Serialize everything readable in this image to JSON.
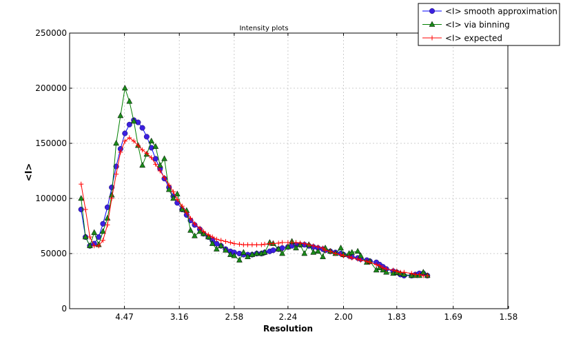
{
  "chart_data": {
    "type": "line",
    "title": "Intensity plots",
    "xlabel": "Resolution",
    "ylabel": "<I>",
    "x_scale": "reciprocal-squared (1/d^2), labelled in resolution",
    "xlim": [
      "infinity",
      1.58
    ],
    "ylim": [
      0,
      250000
    ],
    "grid": true,
    "legend_position": "top-right (outside plot)",
    "x_tick_labels": [
      "4.47",
      "3.16",
      "2.58",
      "2.24",
      "2.00",
      "1.83",
      "1.69",
      "1.58"
    ],
    "y_tick_labels": [
      "0",
      "50000",
      "100000",
      "150000",
      "200000",
      "250000"
    ],
    "x": [
      9.76,
      8.3,
      7.35,
      6.67,
      6.14,
      5.73,
      5.38,
      5.1,
      4.85,
      4.64,
      4.45,
      4.28,
      4.13,
      4.0,
      3.88,
      3.77,
      3.66,
      3.57,
      3.48,
      3.4,
      3.32,
      3.25,
      3.19,
      3.12,
      3.06,
      3.01,
      2.96,
      2.9,
      2.86,
      2.81,
      2.77,
      2.73,
      2.69,
      2.65,
      2.61,
      2.58,
      2.54,
      2.51,
      2.48,
      2.45,
      2.42,
      2.39,
      2.37,
      2.34,
      2.32,
      2.29,
      2.27,
      2.24,
      2.22,
      2.2,
      2.18,
      2.16,
      2.14,
      2.12,
      2.1,
      2.08,
      2.07,
      2.05,
      2.03,
      2.01,
      2.0,
      1.98,
      1.97,
      1.95,
      1.94,
      1.92,
      1.91,
      1.89,
      1.88,
      1.87,
      1.86,
      1.84,
      1.83,
      1.82,
      1.81,
      1.79,
      1.78,
      1.77,
      1.76,
      1.75
    ],
    "series": [
      {
        "name": "<I> smooth approximation",
        "color": "#0000ff",
        "marker": "circle",
        "marker_color": "#3b1fe0",
        "values": [
          90000,
          65000,
          57000,
          59000,
          65000,
          77000,
          92000,
          110000,
          129000,
          145000,
          159000,
          167000,
          171000,
          169000,
          164000,
          156000,
          146000,
          136000,
          127000,
          118000,
          110000,
          102000,
          96000,
          90000,
          85000,
          80000,
          76000,
          72000,
          68000,
          65000,
          62000,
          59000,
          57000,
          54000,
          52000,
          51000,
          50000,
          49000,
          49000,
          49000,
          50000,
          50000,
          51000,
          52000,
          53000,
          54000,
          55000,
          56000,
          57000,
          58000,
          58000,
          58000,
          57000,
          56000,
          55000,
          54000,
          53000,
          52000,
          51000,
          50000,
          49000,
          48000,
          47000,
          46000,
          45000,
          44000,
          43000,
          42000,
          40000,
          38000,
          36000,
          34000,
          33000,
          31000,
          30000,
          30000,
          31000,
          32000,
          32000,
          30000
        ]
      },
      {
        "name": "<I> via binning",
        "color": "#008000",
        "marker": "triangle",
        "marker_color": "#1a8a1a",
        "values": [
          100000,
          65000,
          57000,
          69000,
          58000,
          70000,
          82000,
          103000,
          150000,
          175000,
          200000,
          188000,
          170000,
          148000,
          130000,
          140000,
          152000,
          147000,
          130000,
          136000,
          108000,
          100000,
          104000,
          90000,
          89000,
          71000,
          66000,
          70000,
          68000,
          65000,
          59000,
          54000,
          57000,
          53000,
          49000,
          48000,
          44000,
          51000,
          47000,
          49000,
          50000,
          50000,
          51000,
          60000,
          59000,
          54000,
          50000,
          56000,
          61000,
          55000,
          58000,
          50000,
          58000,
          51000,
          52000,
          47000,
          55000,
          52000,
          50000,
          55000,
          49000,
          50000,
          51000,
          52000,
          48000,
          42000,
          43000,
          35000,
          37000,
          35000,
          33000,
          32000,
          33000,
          32000,
          31000,
          30000,
          30000,
          30000,
          33000,
          30000
        ]
      },
      {
        "name": "<I> expected",
        "color": "#ff0000",
        "marker": "plus",
        "marker_color": "#ff0000",
        "values": [
          113000,
          90000,
          65000,
          57000,
          57000,
          62000,
          76000,
          100000,
          122000,
          142000,
          152000,
          155000,
          152000,
          148000,
          144000,
          141000,
          137000,
          131000,
          125000,
          119000,
          112000,
          106000,
          99000,
          93000,
          87000,
          82000,
          77000,
          73000,
          70000,
          67000,
          65000,
          63000,
          62000,
          61000,
          60000,
          59000,
          58500,
          58000,
          58000,
          58000,
          58000,
          58000,
          58500,
          59000,
          59000,
          59500,
          60000,
          60000,
          60000,
          60000,
          59500,
          59000,
          58000,
          57000,
          56000,
          55000,
          53000,
          52000,
          50000,
          49000,
          48000,
          47000,
          46000,
          45000,
          44000,
          43000,
          42000,
          40000,
          39000,
          37000,
          36000,
          35000,
          34000,
          33000,
          33000,
          32000,
          31000,
          31000,
          30000,
          30000
        ]
      }
    ]
  }
}
